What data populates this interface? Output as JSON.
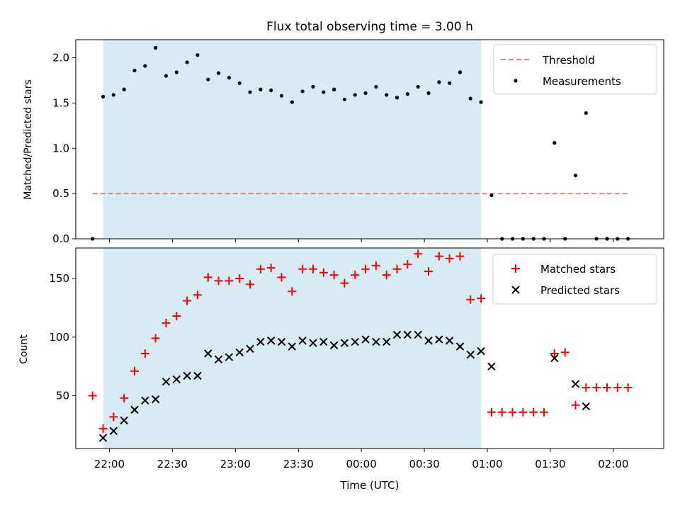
{
  "chart_data": [
    {
      "type": "scatter",
      "title": "Flux total observing time = 3.00 h",
      "ylabel": "Matched/Predicted stars",
      "xlabel": "",
      "ylim": [
        0,
        2.2
      ],
      "yticks": [
        "0.0",
        "0.5",
        "1.0",
        "1.5",
        "2.0"
      ],
      "shaded_span": {
        "start": "21:57",
        "end": "00:57",
        "color": "#add8e6"
      },
      "threshold": {
        "name": "Threshold",
        "y": 0.5,
        "x_start": "21:52",
        "x_end": "02:08",
        "color": "#f08080"
      },
      "legend": {
        "position": "top-right",
        "entries": [
          "Threshold",
          "Measurements"
        ]
      },
      "series": [
        {
          "name": "Measurements",
          "color": "#000000",
          "x": [
            "21:52",
            "21:57",
            "22:02",
            "22:07",
            "22:12",
            "22:17",
            "22:22",
            "22:27",
            "22:32",
            "22:37",
            "22:42",
            "22:47",
            "22:52",
            "22:57",
            "23:02",
            "23:07",
            "23:12",
            "23:17",
            "23:22",
            "23:27",
            "23:32",
            "23:37",
            "23:42",
            "23:47",
            "23:52",
            "23:57",
            "00:02",
            "00:07",
            "00:12",
            "00:17",
            "00:22",
            "00:27",
            "00:32",
            "00:37",
            "00:42",
            "00:47",
            "00:52",
            "00:57",
            "01:02",
            "01:07",
            "01:12",
            "01:17",
            "01:22",
            "01:27",
            "01:32",
            "01:37",
            "01:42",
            "01:47",
            "01:52",
            "01:57",
            "02:02",
            "02:07"
          ],
          "y": [
            0.0,
            1.57,
            1.59,
            1.65,
            1.86,
            1.91,
            2.11,
            1.8,
            1.84,
            1.95,
            2.03,
            1.76,
            1.83,
            1.78,
            1.72,
            1.62,
            1.65,
            1.64,
            1.58,
            1.51,
            1.63,
            1.68,
            1.62,
            1.65,
            1.54,
            1.59,
            1.61,
            1.68,
            1.59,
            1.56,
            1.6,
            1.68,
            1.61,
            1.73,
            1.72,
            1.84,
            1.55,
            1.51,
            0.48,
            0.0,
            0.0,
            0.0,
            0.0,
            0.0,
            1.06,
            0.0,
            0.7,
            1.39,
            0.0,
            0.0,
            0.0,
            0.0
          ]
        }
      ]
    },
    {
      "type": "scatter",
      "title": "",
      "xlabel": "Time (UTC)",
      "ylabel": "Count",
      "ylim": [
        5,
        176
      ],
      "yticks": [
        "50",
        "100",
        "150"
      ],
      "xticks": [
        "22:00",
        "22:30",
        "23:00",
        "23:30",
        "00:00",
        "00:30",
        "01:00",
        "01:30",
        "02:00"
      ],
      "shaded_span": {
        "start": "21:57",
        "end": "00:57",
        "color": "#add8e6"
      },
      "legend": {
        "position": "top-right",
        "entries": [
          "Matched stars",
          "Predicted stars"
        ]
      },
      "series": [
        {
          "name": "Matched stars",
          "marker": "+",
          "color": "#ff0000",
          "x": [
            "21:52",
            "21:57",
            "22:02",
            "22:07",
            "22:12",
            "22:17",
            "22:22",
            "22:27",
            "22:32",
            "22:37",
            "22:42",
            "22:47",
            "22:52",
            "22:57",
            "23:02",
            "23:07",
            "23:12",
            "23:17",
            "23:22",
            "23:27",
            "23:32",
            "23:37",
            "23:42",
            "23:47",
            "23:52",
            "23:57",
            "00:02",
            "00:07",
            "00:12",
            "00:17",
            "00:22",
            "00:27",
            "00:32",
            "00:37",
            "00:42",
            "00:47",
            "00:52",
            "00:57",
            "01:02",
            "01:07",
            "01:12",
            "01:17",
            "01:22",
            "01:27",
            "01:32",
            "01:37",
            "01:42",
            "01:47",
            "01:52",
            "01:57",
            "02:02",
            "02:07"
          ],
          "y": [
            50,
            22,
            32,
            48,
            71,
            86,
            99,
            112,
            118,
            131,
            136,
            151,
            148,
            148,
            150,
            145,
            158,
            159,
            151,
            139,
            158,
            158,
            155,
            153,
            146,
            153,
            158,
            161,
            153,
            158,
            162,
            171,
            156,
            169,
            167,
            169,
            132,
            133,
            36,
            36,
            36,
            36,
            36,
            36,
            86,
            87,
            42,
            57,
            57,
            57,
            57,
            57
          ]
        },
        {
          "name": "Predicted stars",
          "marker": "x",
          "color": "#000000",
          "x": [
            "21:57",
            "22:02",
            "22:07",
            "22:12",
            "22:17",
            "22:22",
            "22:27",
            "22:32",
            "22:37",
            "22:42",
            "22:47",
            "22:52",
            "22:57",
            "23:02",
            "23:07",
            "23:12",
            "23:17",
            "23:22",
            "23:27",
            "23:32",
            "23:37",
            "23:42",
            "23:47",
            "23:52",
            "23:57",
            "00:02",
            "00:07",
            "00:12",
            "00:17",
            "00:22",
            "00:27",
            "00:32",
            "00:37",
            "00:42",
            "00:47",
            "00:52",
            "00:57",
            "01:02",
            "01:32",
            "01:42",
            "01:47"
          ],
          "y": [
            14,
            20,
            29,
            38,
            46,
            47,
            62,
            64,
            67,
            67,
            86,
            81,
            83,
            87,
            90,
            96,
            97,
            96,
            92,
            97,
            95,
            96,
            93,
            95,
            96,
            98,
            96,
            96,
            102,
            102,
            102,
            97,
            98,
            97,
            92,
            85,
            88,
            75,
            82,
            60,
            41
          ]
        }
      ]
    }
  ]
}
